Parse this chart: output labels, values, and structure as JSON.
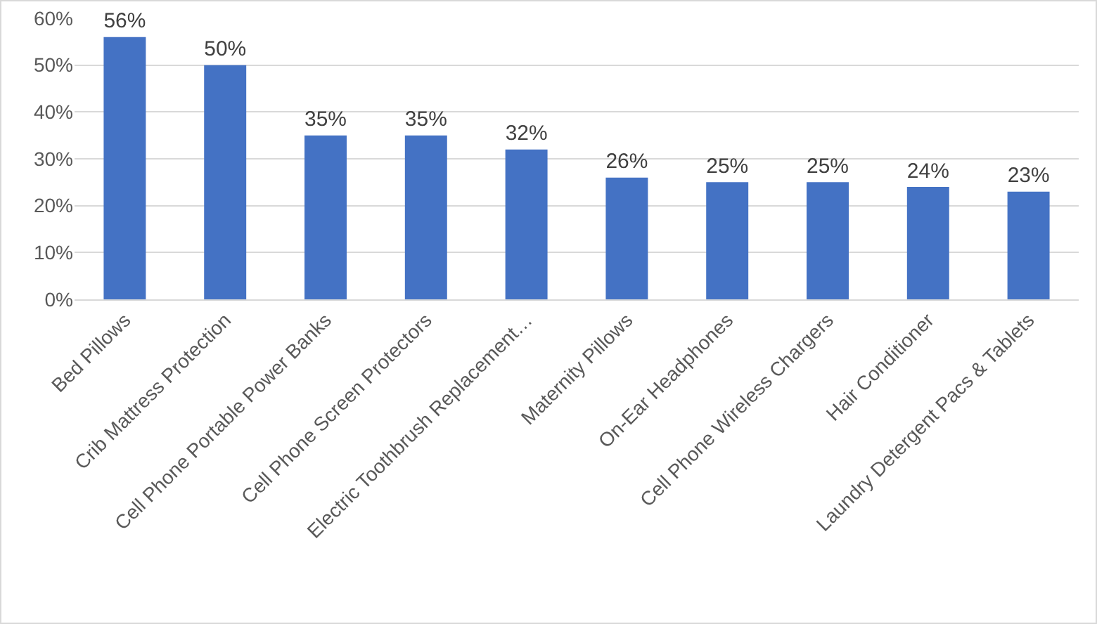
{
  "chart_data": {
    "type": "bar",
    "categories": [
      "Bed Pillows",
      "Crib Mattress Protection",
      "Cell Phone Portable Power Banks",
      "Cell Phone Screen Protectors",
      "Electric Toothbrush Replacement…",
      "Maternity Pillows",
      "On-Ear Headphones",
      "Cell Phone Wireless Chargers",
      "Hair Conditioner",
      "Laundry Detergent Pacs & Tablets"
    ],
    "values": [
      56,
      50,
      35,
      35,
      32,
      26,
      25,
      25,
      24,
      23
    ],
    "value_labels": [
      "56%",
      "50%",
      "35%",
      "35%",
      "32%",
      "26%",
      "25%",
      "25%",
      "24%",
      "23%"
    ],
    "color": "#4472c4",
    "ylim": [
      0,
      60
    ],
    "yticks": [
      {
        "value": 0,
        "label": "0%"
      },
      {
        "value": 10,
        "label": "10%"
      },
      {
        "value": 20,
        "label": "20%"
      },
      {
        "value": 30,
        "label": "30%"
      },
      {
        "value": 40,
        "label": "40%"
      },
      {
        "value": 50,
        "label": "50%"
      },
      {
        "value": 60,
        "label": "60%"
      }
    ],
    "grid": "y"
  }
}
